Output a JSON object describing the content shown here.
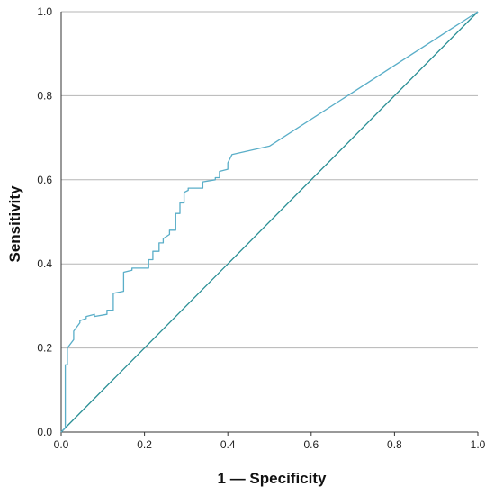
{
  "colors": {
    "roc_curve": "#5aaec8",
    "reference_line": "#2a8f95",
    "gridline": "#b5b5b5",
    "axis": "#333333"
  },
  "chart_data": {
    "type": "line",
    "title": "",
    "xlabel": "1 — Specificity",
    "ylabel": "Sensitivity",
    "xlim": [
      0.0,
      1.0
    ],
    "ylim": [
      0.0,
      1.0
    ],
    "xticks": [
      "0.0",
      "0.2",
      "0.4",
      "0.6",
      "0.8",
      "1.0"
    ],
    "yticks": [
      "0.0",
      "0.2",
      "0.4",
      "0.6",
      "0.8",
      "1.0"
    ],
    "grid": "horizontal",
    "series": [
      {
        "x": [
          0.0,
          0.01,
          0.01,
          0.015,
          0.015,
          0.03,
          0.03,
          0.045,
          0.045,
          0.06,
          0.06,
          0.08,
          0.08,
          0.11,
          0.11,
          0.125,
          0.125,
          0.15,
          0.15,
          0.17,
          0.17,
          0.21,
          0.21,
          0.22,
          0.22,
          0.235,
          0.235,
          0.245,
          0.245,
          0.26,
          0.26,
          0.275,
          0.275,
          0.285,
          0.285,
          0.295,
          0.295,
          0.305,
          0.305,
          0.34,
          0.34,
          0.37,
          0.37,
          0.38,
          0.38,
          0.4,
          0.4,
          0.41,
          0.5,
          1.0
        ],
        "y": [
          0.0,
          0.01,
          0.16,
          0.16,
          0.2,
          0.22,
          0.24,
          0.26,
          0.265,
          0.27,
          0.275,
          0.28,
          0.275,
          0.28,
          0.29,
          0.29,
          0.33,
          0.335,
          0.38,
          0.385,
          0.39,
          0.39,
          0.41,
          0.41,
          0.43,
          0.43,
          0.45,
          0.45,
          0.46,
          0.47,
          0.48,
          0.48,
          0.52,
          0.52,
          0.545,
          0.545,
          0.57,
          0.575,
          0.58,
          0.58,
          0.595,
          0.6,
          0.605,
          0.605,
          0.62,
          0.625,
          0.64,
          0.66,
          0.68,
          1.0
        ]
      },
      {
        "x": [
          0.0,
          1.0
        ],
        "y": [
          0.0,
          1.0
        ]
      }
    ]
  }
}
